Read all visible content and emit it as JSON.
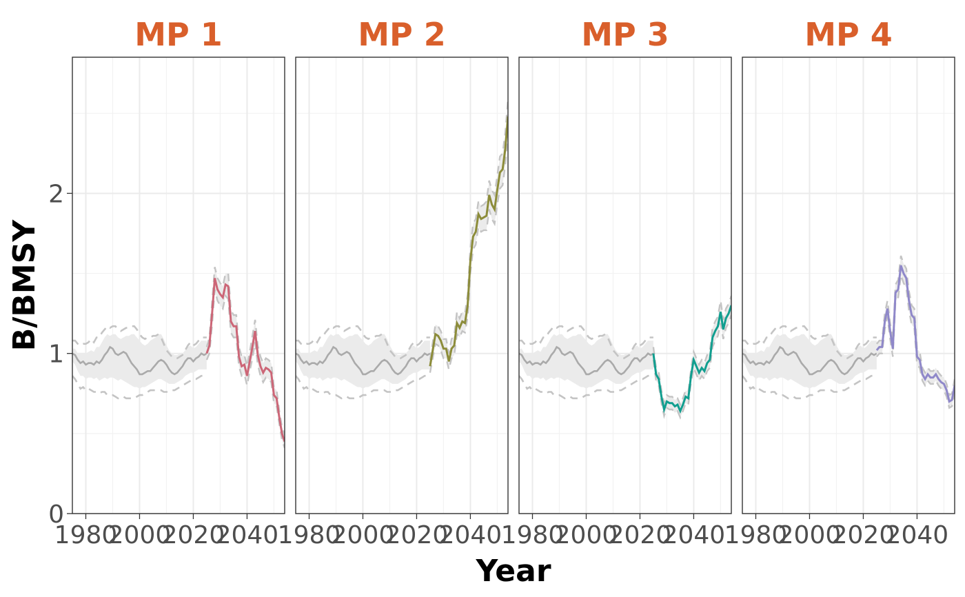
{
  "chart_data": {
    "type": "line",
    "xlabel": "Year",
    "ylabel": "B/BMSY",
    "xlim": [
      1975,
      2054
    ],
    "ylim": [
      0,
      2.85
    ],
    "x_ticks": [
      1980,
      2000,
      2020,
      2040
    ],
    "x_tick_labels": [
      "1980",
      "2000",
      "2020",
      "2040"
    ],
    "y_ticks": [
      0,
      1,
      2
    ],
    "y_tick_labels": [
      "0",
      "1",
      "2"
    ],
    "grid": true,
    "title_color": "#D95F2B",
    "historical": {
      "color": "#AAAAAA",
      "band_color": "#EBEBEB",
      "bound_color": "#C4C4C4",
      "x": [
        1975,
        1976,
        1977,
        1978,
        1979,
        1980,
        1981,
        1982,
        1983,
        1984,
        1985,
        1986,
        1987,
        1988,
        1989,
        1990,
        1991,
        1992,
        1993,
        1994,
        1995,
        1996,
        1997,
        1998,
        1999,
        2000,
        2001,
        2002,
        2003,
        2004,
        2005,
        2006,
        2007,
        2008,
        2009,
        2010,
        2011,
        2012,
        2013,
        2014,
        2015,
        2016,
        2017,
        2018,
        2019,
        2020,
        2021,
        2022,
        2023,
        2024,
        2025
      ],
      "median": [
        1.0,
        0.99,
        0.96,
        0.94,
        0.95,
        0.93,
        0.94,
        0.94,
        0.93,
        0.95,
        0.94,
        0.96,
        0.99,
        1.01,
        1.04,
        1.03,
        1.0,
        0.99,
        1.0,
        1.01,
        1.0,
        0.97,
        0.94,
        0.92,
        0.9,
        0.87,
        0.87,
        0.88,
        0.89,
        0.89,
        0.91,
        0.93,
        0.95,
        0.96,
        0.95,
        0.93,
        0.9,
        0.88,
        0.87,
        0.88,
        0.9,
        0.92,
        0.95,
        0.97,
        0.97,
        0.95,
        0.97,
        0.98,
        1.0,
        0.99,
        1.0
      ],
      "lower": [
        0.95,
        0.93,
        0.89,
        0.86,
        0.86,
        0.84,
        0.85,
        0.85,
        0.84,
        0.85,
        0.83,
        0.84,
        0.85,
        0.84,
        0.85,
        0.85,
        0.84,
        0.83,
        0.84,
        0.83,
        0.82,
        0.81,
        0.8,
        0.79,
        0.79,
        0.78,
        0.79,
        0.79,
        0.8,
        0.81,
        0.82,
        0.83,
        0.84,
        0.84,
        0.83,
        0.82,
        0.81,
        0.81,
        0.81,
        0.82,
        0.83,
        0.84,
        0.86,
        0.87,
        0.88,
        0.88,
        0.89,
        0.9,
        0.9,
        0.9,
        0.9
      ],
      "upper": [
        1.03,
        1.03,
        1.0,
        1.0,
        1.0,
        1.0,
        1.01,
        1.02,
        1.01,
        1.04,
        1.04,
        1.07,
        1.1,
        1.12,
        1.11,
        1.12,
        1.12,
        1.1,
        1.09,
        1.1,
        1.11,
        1.11,
        1.12,
        1.12,
        1.1,
        1.08,
        1.06,
        1.05,
        1.06,
        1.08,
        1.09,
        1.1,
        1.12,
        1.12,
        1.09,
        1.05,
        1.02,
        1.0,
        0.99,
        0.99,
        1.0,
        1.0,
        1.02,
        1.04,
        1.05,
        1.03,
        1.04,
        1.06,
        1.08,
        1.08,
        1.08
      ],
      "lower_dash": [
        0.86,
        0.84,
        0.81,
        0.78,
        0.79,
        0.77,
        0.78,
        0.77,
        0.76,
        0.76,
        0.75,
        0.76,
        0.76,
        0.74,
        0.74,
        0.74,
        0.73,
        0.72,
        0.73,
        0.73,
        0.72,
        0.72,
        0.72,
        0.72,
        0.73,
        0.74,
        0.74,
        0.75,
        0.76,
        0.77,
        0.77,
        0.77,
        0.77,
        0.77,
        0.76,
        0.76,
        0.76,
        0.77,
        0.77,
        0.78,
        0.79,
        0.8,
        0.81,
        0.82,
        0.83,
        0.84,
        0.84,
        0.85,
        0.86,
        0.86,
        0.86
      ],
      "upper_dash": [
        1.08,
        1.08,
        1.06,
        1.05,
        1.06,
        1.06,
        1.07,
        1.09,
        1.07,
        1.1,
        1.1,
        1.13,
        1.15,
        1.17,
        1.16,
        1.17,
        1.17,
        1.15,
        1.14,
        1.15,
        1.16,
        1.16,
        1.17,
        1.17,
        1.15,
        1.12,
        1.1,
        1.09,
        1.1,
        1.1,
        1.11,
        1.11,
        1.12,
        1.1,
        1.06,
        1.02,
        1.0,
        0.98,
        0.97,
        0.97,
        0.98,
        0.99,
        1.02,
        1.05,
        1.07,
        1.05,
        1.06,
        1.08,
        1.1,
        1.1,
        1.1
      ]
    },
    "series": [
      {
        "name": "MP 1",
        "color": "#CC6677",
        "x": [
          2025,
          2026,
          2027,
          2028,
          2029,
          2030,
          2031,
          2032,
          2033,
          2034,
          2035,
          2036,
          2037,
          2038,
          2039,
          2040,
          2041,
          2042,
          2043,
          2044,
          2045,
          2046,
          2047,
          2048,
          2049,
          2050,
          2051,
          2052,
          2053,
          2054
        ],
        "median": [
          1.0,
          1.05,
          1.25,
          1.47,
          1.4,
          1.37,
          1.35,
          1.43,
          1.42,
          1.2,
          1.17,
          1.17,
          0.98,
          0.92,
          0.93,
          0.86,
          0.95,
          1.04,
          1.14,
          0.99,
          0.92,
          0.88,
          0.91,
          0.9,
          0.88,
          0.74,
          0.72,
          0.6,
          0.5,
          0.45
        ],
        "lower": [
          0.96,
          1.0,
          1.18,
          1.4,
          1.33,
          1.3,
          1.28,
          1.36,
          1.34,
          1.13,
          1.1,
          1.1,
          0.92,
          0.86,
          0.87,
          0.8,
          0.89,
          0.97,
          1.07,
          0.93,
          0.86,
          0.82,
          0.85,
          0.84,
          0.82,
          0.69,
          0.67,
          0.56,
          0.46,
          0.41
        ],
        "upper": [
          1.04,
          1.1,
          1.32,
          1.54,
          1.47,
          1.44,
          1.42,
          1.5,
          1.5,
          1.27,
          1.24,
          1.24,
          1.04,
          0.98,
          0.99,
          0.92,
          1.01,
          1.11,
          1.21,
          1.05,
          0.98,
          0.94,
          0.97,
          0.96,
          0.94,
          0.79,
          0.77,
          0.64,
          0.54,
          0.49
        ]
      },
      {
        "name": "MP 2",
        "color": "#8C8C3A",
        "x": [
          2025,
          2026,
          2027,
          2028,
          2029,
          2030,
          2031,
          2032,
          2033,
          2034,
          2035,
          2036,
          2037,
          2038,
          2039,
          2040,
          2041,
          2042,
          2043,
          2044,
          2045,
          2046,
          2047,
          2048,
          2049,
          2050,
          2051,
          2052,
          2053,
          2054
        ],
        "median": [
          0.92,
          1.02,
          1.12,
          1.11,
          1.08,
          1.03,
          1.03,
          0.95,
          1.03,
          1.05,
          1.19,
          1.16,
          1.2,
          1.19,
          1.3,
          1.58,
          1.73,
          1.76,
          1.87,
          1.84,
          1.85,
          1.86,
          1.99,
          1.93,
          1.9,
          2.02,
          2.13,
          2.15,
          2.28,
          2.48
        ],
        "lower": [
          0.88,
          0.97,
          1.06,
          1.05,
          1.02,
          0.97,
          0.97,
          0.9,
          0.97,
          0.99,
          1.12,
          1.1,
          1.14,
          1.13,
          1.23,
          1.5,
          1.65,
          1.68,
          1.79,
          1.76,
          1.77,
          1.77,
          1.9,
          1.84,
          1.81,
          1.93,
          2.03,
          2.05,
          2.18,
          2.37
        ],
        "upper": [
          0.96,
          1.07,
          1.18,
          1.17,
          1.14,
          1.09,
          1.09,
          1.0,
          1.09,
          1.11,
          1.26,
          1.22,
          1.26,
          1.25,
          1.37,
          1.66,
          1.81,
          1.84,
          1.95,
          1.92,
          1.93,
          1.95,
          2.08,
          2.02,
          1.99,
          2.11,
          2.23,
          2.25,
          2.38,
          2.59
        ]
      },
      {
        "name": "MP 3",
        "color": "#119E8F",
        "x": [
          2025,
          2026,
          2027,
          2028,
          2029,
          2030,
          2031,
          2032,
          2033,
          2034,
          2035,
          2036,
          2037,
          2038,
          2039,
          2040,
          2041,
          2042,
          2043,
          2044,
          2045,
          2046,
          2047,
          2048,
          2049,
          2050,
          2051,
          2052,
          2053,
          2054
        ],
        "median": [
          1.0,
          0.87,
          0.84,
          0.73,
          0.65,
          0.7,
          0.69,
          0.69,
          0.67,
          0.68,
          0.64,
          0.68,
          0.73,
          0.72,
          0.86,
          0.96,
          0.92,
          0.88,
          0.91,
          0.89,
          0.94,
          0.96,
          1.1,
          1.14,
          1.17,
          1.26,
          1.15,
          1.22,
          1.25,
          1.3
        ],
        "lower": [
          0.96,
          0.83,
          0.8,
          0.69,
          0.61,
          0.66,
          0.65,
          0.65,
          0.63,
          0.64,
          0.6,
          0.64,
          0.69,
          0.68,
          0.82,
          0.91,
          0.87,
          0.83,
          0.86,
          0.84,
          0.89,
          0.91,
          1.04,
          1.08,
          1.11,
          1.19,
          1.09,
          1.16,
          1.19,
          1.24
        ],
        "upper": [
          1.04,
          0.91,
          0.88,
          0.77,
          0.69,
          0.74,
          0.73,
          0.73,
          0.71,
          0.72,
          0.68,
          0.72,
          0.77,
          0.76,
          0.9,
          1.01,
          0.97,
          0.93,
          0.96,
          0.94,
          0.99,
          1.01,
          1.16,
          1.2,
          1.23,
          1.33,
          1.21,
          1.28,
          1.31,
          1.36
        ]
      },
      {
        "name": "MP 4",
        "color": "#8F88C9",
        "x": [
          2025,
          2026,
          2027,
          2028,
          2029,
          2030,
          2031,
          2032,
          2033,
          2034,
          2035,
          2036,
          2037,
          2038,
          2039,
          2040,
          2041,
          2042,
          2043,
          2044,
          2045,
          2046,
          2047,
          2048,
          2049,
          2050,
          2051,
          2052,
          2053,
          2054
        ],
        "median": [
          1.02,
          1.04,
          1.04,
          1.2,
          1.28,
          1.14,
          1.03,
          1.38,
          1.4,
          1.55,
          1.5,
          1.47,
          1.33,
          1.24,
          1.22,
          0.98,
          0.96,
          0.87,
          0.84,
          0.87,
          0.85,
          0.85,
          0.87,
          0.84,
          0.82,
          0.81,
          0.77,
          0.7,
          0.71,
          0.8
        ],
        "lower": [
          0.98,
          1.0,
          1.0,
          1.15,
          1.23,
          1.09,
          0.98,
          1.33,
          1.35,
          1.49,
          1.44,
          1.41,
          1.27,
          1.18,
          1.16,
          0.93,
          0.91,
          0.83,
          0.8,
          0.83,
          0.81,
          0.81,
          0.83,
          0.8,
          0.78,
          0.77,
          0.73,
          0.66,
          0.67,
          0.76
        ],
        "upper": [
          1.06,
          1.08,
          1.08,
          1.25,
          1.33,
          1.19,
          1.08,
          1.43,
          1.46,
          1.61,
          1.56,
          1.53,
          1.39,
          1.3,
          1.28,
          1.03,
          1.01,
          0.91,
          0.88,
          0.91,
          0.89,
          0.89,
          0.91,
          0.88,
          0.86,
          0.85,
          0.81,
          0.74,
          0.75,
          0.84
        ]
      }
    ]
  }
}
